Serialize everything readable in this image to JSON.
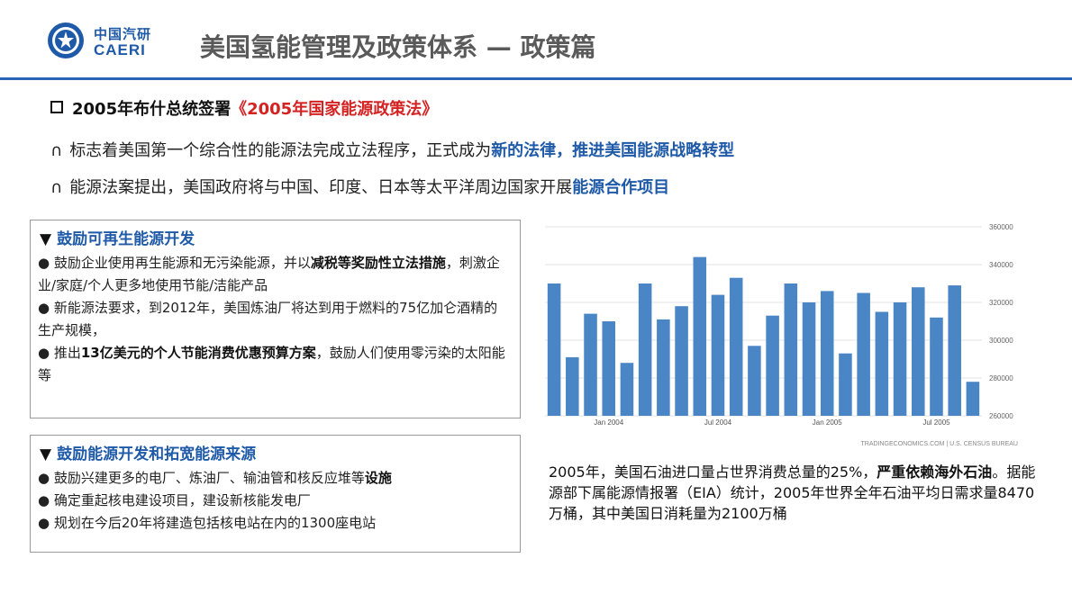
{
  "header": {
    "logo_cn": "中国汽研",
    "logo_en": "CAERI",
    "title": "美国氢能管理及政策体系 — 政策篇"
  },
  "intro": {
    "heading_prefix": "2005年布什总统签署",
    "heading_law": "《2005年国家能源政策法》",
    "points": [
      {
        "marker": "∩",
        "text": "标志着美国第一个综合性的能源法完成立法程序，正式成为",
        "highlight": "新的法律，推进美国能源战略转型"
      },
      {
        "marker": "∩",
        "text": "能源法案提出，美国政府将与中国、印度、日本等太平洋周边国家开展",
        "highlight": "能源合作项目"
      }
    ]
  },
  "panel1": {
    "marker": "▼",
    "title": "鼓励可再生能源开发",
    "items": [
      {
        "a": "●  鼓励企业使用再生能源和无污染能源，并以",
        "b": "减税等奖励性立法措施",
        "c": "，刺激企业/家庭/个人更多地使用节能/洁能产品"
      },
      {
        "a": "● 新能源法要求，到2012年，美国炼油厂将达到用于燃料的75亿加仑酒精的生产规模，",
        "b": "",
        "c": ""
      },
      {
        "a": "●  推出",
        "b": "13亿美元的个人节能消费优惠预算方案",
        "c": "，鼓励人们使用零污染的太阳能等"
      }
    ]
  },
  "panel2": {
    "marker": "▼",
    "title": "鼓励能源开发和拓宽能源来源",
    "items": [
      {
        "a": "● 鼓励兴建更多的电厂、炼油厂、输油管和核反应堆等",
        "b": "设施"
      },
      {
        "a": "● 确定重起核电建设项目，建设新核能发电厂",
        "b": ""
      },
      {
        "a": "● 规划在今后20年将建造包括核电站在内的1300座电站",
        "b": ""
      }
    ]
  },
  "chart_data": {
    "type": "bar",
    "ylim": [
      260000,
      360000
    ],
    "yticks": [
      "260000",
      "280000",
      "300000",
      "320000",
      "340000",
      "360000"
    ],
    "xticks": [
      {
        "label": "Jan 2004",
        "index": 3
      },
      {
        "label": "Jul 2004",
        "index": 9
      },
      {
        "label": "Jan 2005",
        "index": 15
      },
      {
        "label": "Jul 2005",
        "index": 21
      }
    ],
    "values": [
      330000,
      291000,
      314000,
      310000,
      288000,
      330000,
      311000,
      318000,
      344000,
      324000,
      333000,
      297000,
      313000,
      330000,
      320000,
      326000,
      293000,
      325000,
      315000,
      320000,
      328000,
      312000,
      329000,
      278000
    ],
    "source": "TRADINGECONOMICS.COM  |  U.S. CENSUS BUREAU",
    "bar_color": "#4a86c5",
    "grid": true
  },
  "caption": {
    "part1": "2005年，美国石油进口量占世界消费总量的25%，",
    "bold": "严重依赖海外石油",
    "part2": "。据能源部下属能源情报署（EIA）统计，2005年世界全年石油平均日需求量8470万桶，其中美国日消耗量为2100万桶"
  },
  "colors": {
    "accent": "#1f5aa8",
    "law_red": "#d42222",
    "rule": "#2a64b4"
  }
}
